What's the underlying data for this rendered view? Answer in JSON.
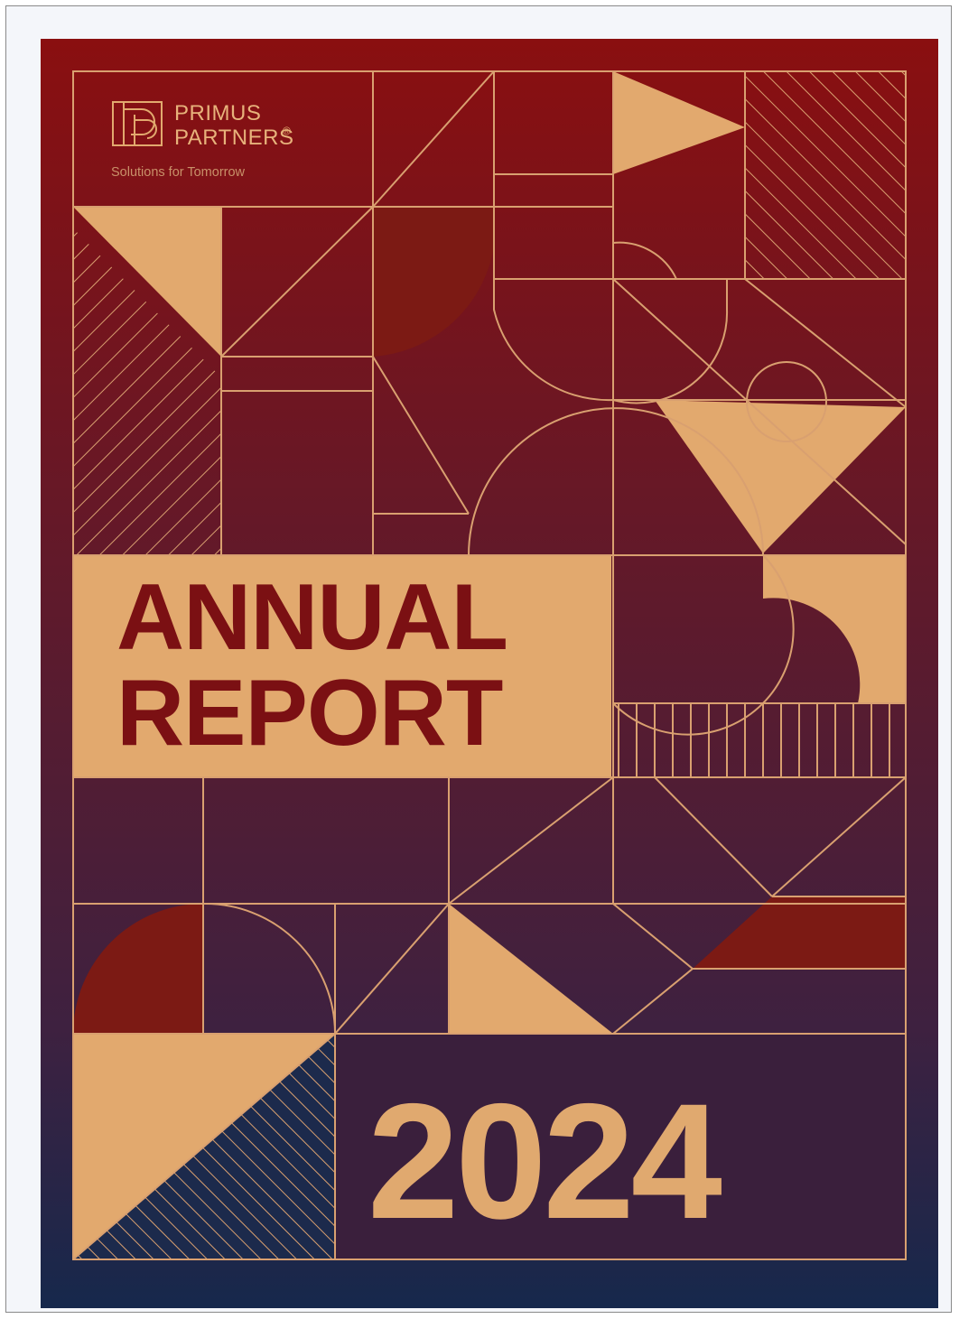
{
  "logo": {
    "line1": "PRIMUS",
    "line2": "PARTNERS",
    "registered": "®",
    "tagline": "Solutions for Tomorrow"
  },
  "title": {
    "line1": "ANNUAL",
    "line2": "REPORT"
  },
  "year": "2024",
  "colors": {
    "top_red": "#8a0f10",
    "mid_plum": "#4f1c36",
    "bottom_navy": "#1a2b4e",
    "tan": "#e2a96e",
    "dark_red_block": "#7c1a14"
  }
}
